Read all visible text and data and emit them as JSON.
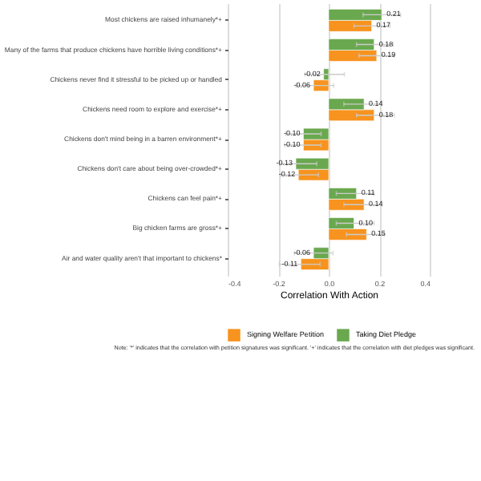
{
  "chart_data": {
    "type": "bar",
    "orientation": "horizontal",
    "categories": [
      "Most chickens are raised inhumanely*+",
      "Many of the farms that produce chickens have horrible living conditions*+",
      "Chickens never find it stressful to be picked up or handled",
      "Chickens need room to explore and exercise*+",
      "Chickens don't mind being in a barren environment*+",
      "Chickens don't care about being over-crowded*+",
      "Chickens can feel pain*+",
      "Big chicken farms are gross*+",
      "Air and water quality aren't that important to chickens*"
    ],
    "series": [
      {
        "name": "Signing Welfare Petition",
        "color": "#f7931e",
        "values": [
          0.17,
          0.19,
          -0.06,
          0.18,
          -0.1,
          -0.12,
          0.14,
          0.15,
          -0.11
        ],
        "value_labels": [
          "0.17",
          "0.19",
          "-0.06",
          "0.18",
          "-0.10",
          "-0.12",
          "0.14",
          "0.15",
          "-0.11"
        ],
        "errors": [
          [
            0.1,
            0.243
          ],
          [
            0.12,
            0.26
          ],
          [
            -0.13,
            0.02
          ],
          [
            0.11,
            0.26
          ],
          [
            -0.175,
            -0.03
          ],
          [
            -0.19,
            -0.04
          ],
          [
            0.06,
            0.21
          ],
          [
            0.07,
            0.22
          ],
          [
            -0.196,
            -0.034
          ]
        ]
      },
      {
        "name": "Taking Diet Pledge",
        "color": "#6aa84f",
        "values": [
          0.21,
          0.18,
          -0.02,
          0.14,
          -0.1,
          -0.13,
          0.11,
          0.1,
          -0.06
        ],
        "value_labels": [
          "0.21",
          "0.18",
          "-0.02",
          "0.14",
          "-0.10",
          "-0.13",
          "0.11",
          "0.10",
          "-0.06"
        ],
        "errors": [
          [
            0.136,
            0.285
          ],
          [
            0.11,
            0.255
          ],
          [
            -0.094,
            0.062
          ],
          [
            0.06,
            0.21
          ],
          [
            -0.17,
            -0.03
          ],
          [
            -0.196,
            -0.047
          ],
          [
            0.03,
            0.18
          ],
          [
            0.03,
            0.18
          ],
          [
            -0.136,
            0.017
          ]
        ]
      }
    ],
    "xlabel": "Correlation With Action",
    "xlim": [
      -0.4,
      0.4
    ],
    "xticks": [
      -0.4,
      -0.2,
      {
        "value": 0,
        "label": "0.0"
      },
      0.2,
      0.4
    ],
    "grid": "x",
    "legend": "bottom",
    "annotations": [
      "Note: '*' indicates that the correlation with petition signatures was significant. '+' indicates that the correlation with diet pledges was significant."
    ]
  }
}
